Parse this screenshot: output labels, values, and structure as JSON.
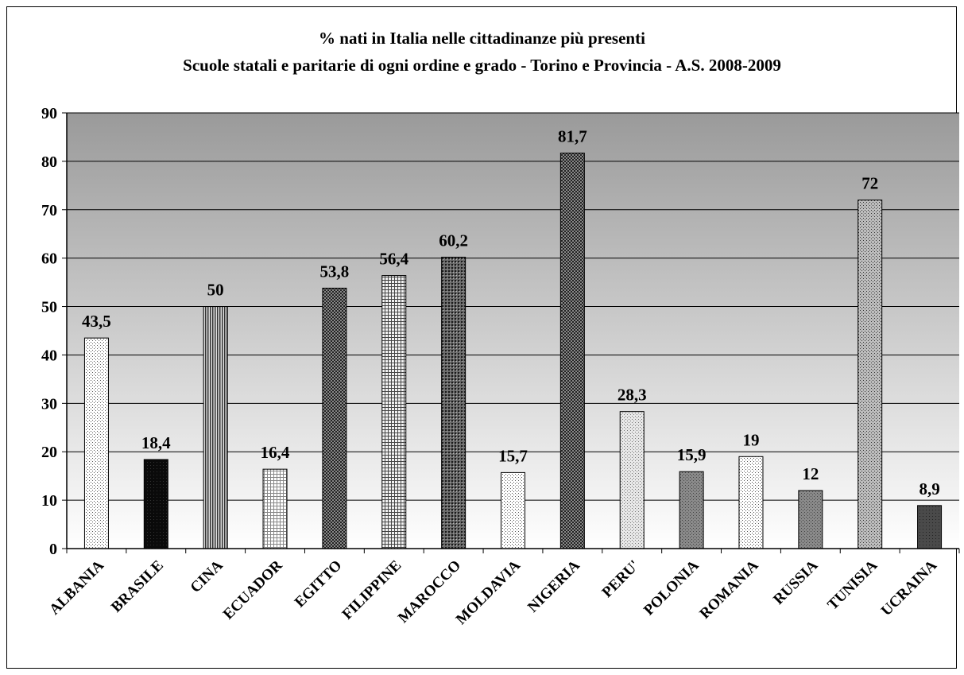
{
  "chart_data": {
    "type": "bar",
    "title": "%  nati in Italia nelle cittadinanze più presenti",
    "subtitle": "Scuole statali e paritarie di ogni ordine e grado - Torino e Provincia - A.S. 2008-2009",
    "categories": [
      "ALBANIA",
      "BRASILE",
      "CINA",
      "ECUADOR",
      "EGITTO",
      "FILIPPINE",
      "MAROCCO",
      "MOLDAVIA",
      "NIGERIA",
      "PERU'",
      "POLONIA",
      "ROMANIA",
      "RUSSIA",
      "TUNISIA",
      "UCRAINA"
    ],
    "values": [
      43.5,
      18.4,
      50,
      16.4,
      53.8,
      56.4,
      60.2,
      15.7,
      81.7,
      28.3,
      15.9,
      19,
      12,
      72,
      8.9
    ],
    "value_labels": [
      "43,5",
      "18,4",
      "50",
      "16,4",
      "53,8",
      "56,4",
      "60,2",
      "15,7",
      "81,7",
      "28,3",
      "15,9",
      "19",
      "12",
      "72",
      "8,9"
    ],
    "ylim": [
      0,
      90
    ],
    "yticks": [
      0,
      10,
      20,
      30,
      40,
      50,
      60,
      70,
      80,
      90
    ],
    "grid": true,
    "legend": "none",
    "plot_background": "gradient gray to white",
    "bar_patterns": [
      "light-dots",
      "black",
      "vertical-stripes",
      "light-grid",
      "dark-check",
      "grid",
      "dark-dots",
      "light-dots",
      "dark-check",
      "light-fine",
      "mid-gray",
      "light-dots",
      "mid-gray",
      "dots",
      "dark-gray"
    ]
  }
}
